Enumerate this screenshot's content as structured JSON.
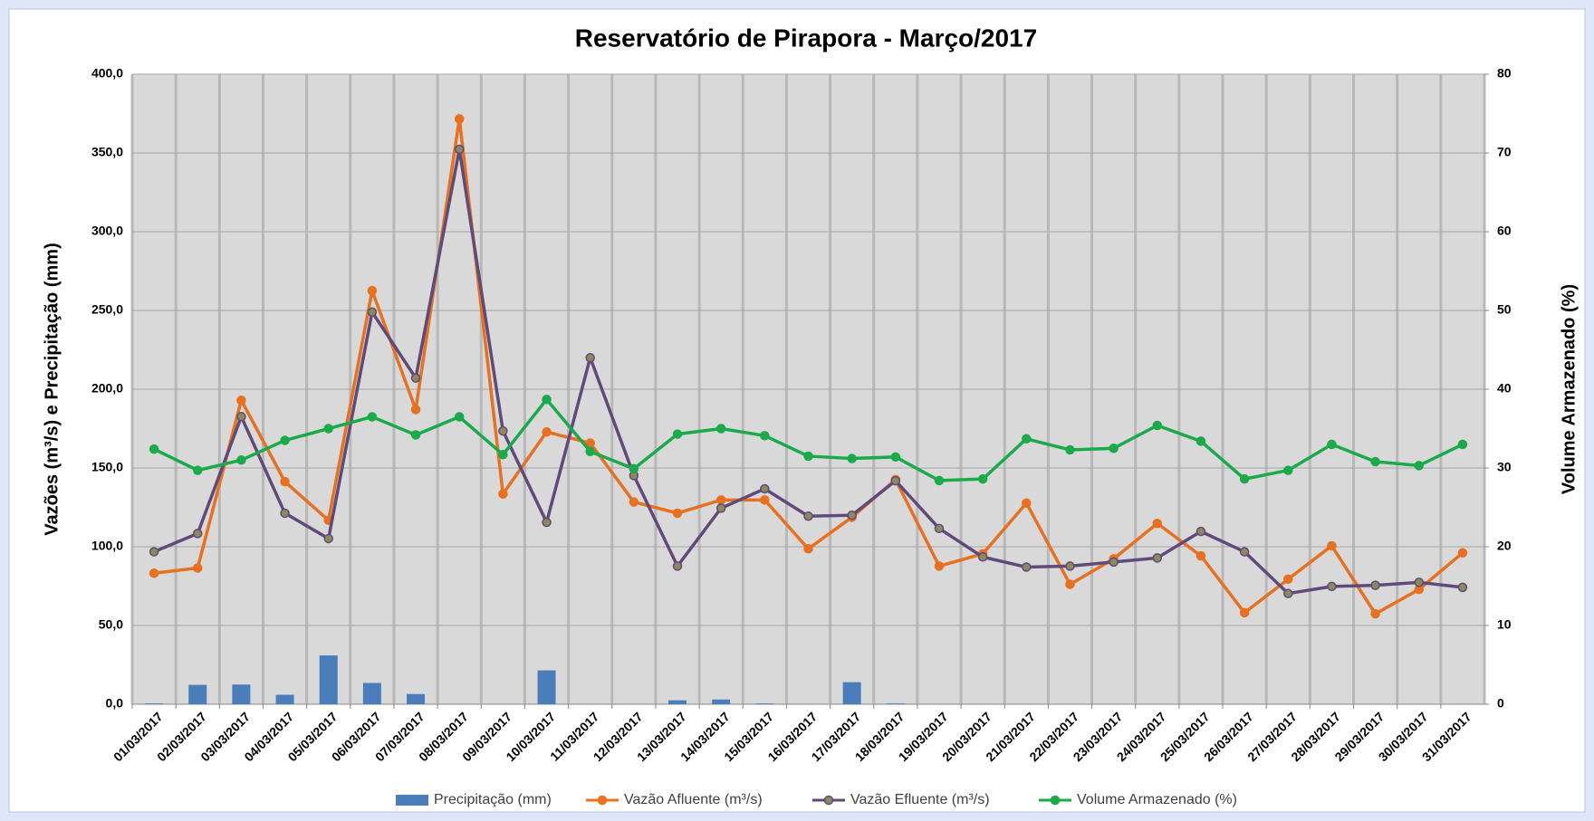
{
  "chart_data": {
    "type": "combo",
    "title": "Reservatório de Pirapora - Março/2017",
    "ylabel": "Vazões (m³/s) e Precipitação (mm)",
    "y2label": "Volume Armazenado (%)",
    "categories": [
      "01/03/2017",
      "02/03/2017",
      "03/03/2017",
      "04/03/2017",
      "05/03/2017",
      "06/03/2017",
      "07/03/2017",
      "08/03/2017",
      "09/03/2017",
      "10/03/2017",
      "11/03/2017",
      "12/03/2017",
      "13/03/2017",
      "14/03/2017",
      "15/03/2017",
      "16/03/2017",
      "17/03/2017",
      "18/03/2017",
      "19/03/2017",
      "20/03/2017",
      "21/03/2017",
      "22/03/2017",
      "23/03/2017",
      "24/03/2017",
      "25/03/2017",
      "26/03/2017",
      "27/03/2017",
      "28/03/2017",
      "29/03/2017",
      "30/03/2017",
      "31/03/2017"
    ],
    "series": [
      {
        "name": "Precipitação (mm)",
        "type": "bar",
        "color": "#4a7ebb",
        "values": [
          0.5,
          12.3,
          12.5,
          6,
          31,
          13.5,
          6.5,
          0,
          0,
          21.5,
          0,
          0,
          2.5,
          3,
          0.5,
          0,
          14,
          0.5,
          0,
          0,
          0,
          0,
          0,
          0,
          0,
          0,
          0,
          0,
          0,
          0,
          0
        ]
      },
      {
        "name": "Vazão Afluente (m³/s)",
        "type": "line",
        "color": "#e8701f",
        "marker": "#e8701f",
        "values": [
          83.2,
          86.5,
          193,
          141.3,
          116.8,
          262.6,
          187.1,
          371.6,
          133.5,
          172.9,
          165.8,
          128.4,
          121.3,
          129.7,
          129.7,
          98.7,
          118.7,
          142.6,
          87.7,
          95.5,
          127.7,
          76.1,
          92.3,
          114.8,
          94.2,
          58.1,
          79.4,
          100.6,
          57.4,
          72.9,
          96.1
        ]
      },
      {
        "name": "Vazão Efluente (m³/s)",
        "type": "line",
        "color": "#604a7b",
        "marker": "#8c8a5c",
        "values": [
          96.8,
          108.4,
          182.6,
          121.3,
          105.2,
          249,
          207.1,
          352.3,
          173.5,
          115.5,
          220,
          145.2,
          87.7,
          124.5,
          136.8,
          119.4,
          120,
          141.9,
          111.6,
          93.5,
          87.1,
          87.7,
          90.3,
          92.9,
          109.7,
          96.8,
          70.3,
          74.8,
          75.5,
          77.4,
          74.2
        ]
      },
      {
        "name": "Volume Armazenado (%)",
        "type": "line",
        "axis": "y2",
        "color": "#1aaa4a",
        "marker": "#1aaa4a",
        "values": [
          32.4,
          29.7,
          31,
          33.5,
          35,
          36.5,
          34.2,
          36.5,
          31.7,
          38.7,
          32.1,
          29.9,
          34.3,
          35,
          34.1,
          31.5,
          31.2,
          31.4,
          28.4,
          28.6,
          33.7,
          32.3,
          32.5,
          35.4,
          33.4,
          28.6,
          29.7,
          33,
          30.8,
          30.3,
          33
        ]
      }
    ],
    "ylim": [
      0,
      400
    ],
    "yticks": [
      {
        "value": 0,
        "label": "0,0"
      },
      {
        "value": 50,
        "label": "50,0"
      },
      {
        "value": 100,
        "label": "100,0"
      },
      {
        "value": 150,
        "label": "150,0"
      },
      {
        "value": 200,
        "label": "200,0"
      },
      {
        "value": 250,
        "label": "250,0"
      },
      {
        "value": 300,
        "label": "300,0"
      },
      {
        "value": 350,
        "label": "350,0"
      },
      {
        "value": 400,
        "label": "400,0"
      }
    ],
    "y2lim": [
      0,
      80
    ],
    "y2ticks": [
      0,
      10,
      20,
      30,
      40,
      50,
      60,
      70,
      80
    ],
    "grid": true,
    "legend": "bottom"
  }
}
